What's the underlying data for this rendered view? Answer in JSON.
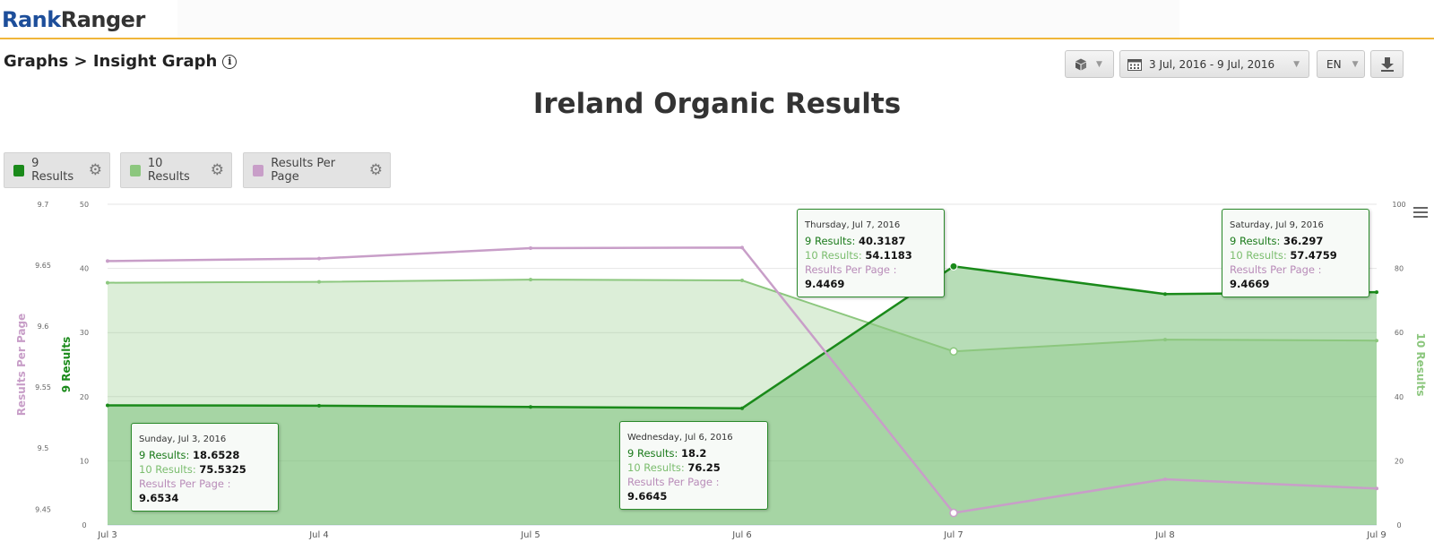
{
  "header": {
    "logo_part1": "Rank",
    "logo_part2": "Ranger"
  },
  "breadcrumb": "Graphs > Insight Graph",
  "controls": {
    "date_range": "3 Jul, 2016 - 9 Jul, 2016",
    "language": "EN"
  },
  "legend": [
    {
      "label": "9 Results",
      "color": "#1a8a1a"
    },
    {
      "label": "10 Results",
      "color": "#8cc77e"
    },
    {
      "label": "Results Per Page",
      "color": "#c89ec8"
    }
  ],
  "tooltips": [
    {
      "date": "Sunday, Jul 3, 2016",
      "r9_label": "9 Results",
      "r9": "18.6528",
      "r10_label": "10 Results",
      "r10": "75.5325",
      "rpp_label": "Results Per Page",
      "rpp": "9.6534"
    },
    {
      "date": "Wednesday, Jul 6, 2016",
      "r9_label": "9 Results",
      "r9": "18.2",
      "r10_label": "10 Results",
      "r10": "76.25",
      "rpp_label": "Results Per Page",
      "rpp": "9.6645"
    },
    {
      "date": "Thursday, Jul 7, 2016",
      "r9_label": "9 Results",
      "r9": "40.3187",
      "r10_label": "10 Results",
      "r10": "54.1183",
      "rpp_label": "Results Per Page",
      "rpp": "9.4469"
    },
    {
      "date": "Saturday, Jul 9, 2016",
      "r9_label": "9 Results",
      "r9": "36.297",
      "r10_label": "10 Results",
      "r10": "57.4759",
      "rpp_label": "Results Per Page",
      "rpp": "9.4669"
    }
  ],
  "chart_data": {
    "type": "line",
    "title": "Ireland Organic Results",
    "categories": [
      "Jul 3",
      "Jul 4",
      "Jul 5",
      "Jul 6",
      "Jul 7",
      "Jul 8",
      "Jul 9"
    ],
    "series": [
      {
        "name": "9 Results",
        "axis": "left_inner",
        "type": "area",
        "color": "#1a8a1a",
        "values": [
          18.6528,
          18.6,
          18.4,
          18.2,
          40.3187,
          36.0,
          36.297
        ]
      },
      {
        "name": "10 Results",
        "axis": "right",
        "type": "area",
        "color": "#8cc77e",
        "values": [
          75.5325,
          75.8,
          76.5,
          76.25,
          54.1183,
          57.8,
          57.4759
        ]
      },
      {
        "name": "Results Per Page",
        "axis": "left_outer",
        "type": "line",
        "color": "#c89ec8",
        "values": [
          9.6534,
          9.6555,
          9.664,
          9.6645,
          9.4469,
          9.4745,
          9.4669
        ]
      }
    ],
    "axes": {
      "left_outer": {
        "label": "Results Per Page",
        "range": [
          9.437,
          9.7
        ],
        "ticks": [
          "9.7",
          "9.65",
          "9.6",
          "9.55",
          "9.5",
          "9.45"
        ]
      },
      "left_inner": {
        "label": "9 Results",
        "range": [
          0,
          50
        ],
        "ticks": [
          "50",
          "40",
          "30",
          "20",
          "10",
          "0"
        ]
      },
      "right": {
        "label": "10 Results",
        "range": [
          0,
          100
        ],
        "ticks": [
          "100",
          "80",
          "60",
          "40",
          "20",
          "0"
        ]
      }
    },
    "grid": true
  }
}
